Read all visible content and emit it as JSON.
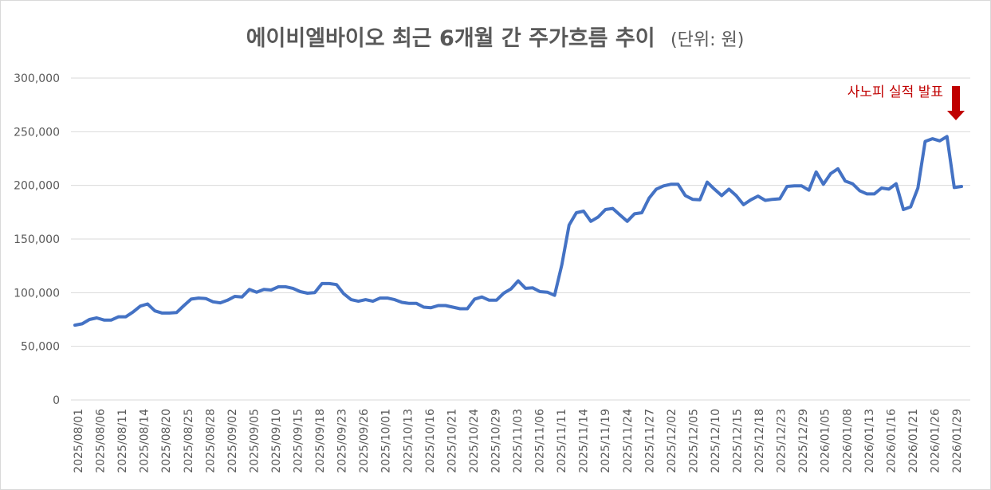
{
  "chart_data": {
    "type": "line",
    "title": "에이비엘바이오 최근 6개월 간 주가흐름 추이",
    "subtitle": "(단위: 원)",
    "xlabel": "",
    "ylabel": "",
    "ylim": [
      0,
      300000
    ],
    "yticks": [
      "0",
      "50,000",
      "100,000",
      "150,000",
      "200,000",
      "250,000",
      "300,000"
    ],
    "grid": true,
    "legend": "none",
    "x_tick_labels": [
      "2025/08/01",
      "2025/08/06",
      "2025/08/11",
      "2025/08/14",
      "2025/08/20",
      "2025/08/25",
      "2025/08/28",
      "2025/09/02",
      "2025/09/05",
      "2025/09/10",
      "2025/09/15",
      "2025/09/18",
      "2025/09/23",
      "2025/09/26",
      "2025/10/01",
      "2025/10/13",
      "2025/10/16",
      "2025/10/21",
      "2025/10/24",
      "2025/10/29",
      "2025/11/03",
      "2025/11/06",
      "2025/11/11",
      "2025/11/14",
      "2025/11/19",
      "2025/11/24",
      "2025/11/27",
      "2025/12/02",
      "2025/12/05",
      "2025/12/10",
      "2025/12/15",
      "2025/12/18",
      "2025/12/23",
      "2025/12/29",
      "2026/01/05",
      "2026/01/08",
      "2026/01/13",
      "2026/01/16",
      "2026/01/21",
      "2026/01/26",
      "2026/01/29"
    ],
    "series": [
      {
        "color": "#4472c4",
        "values": [
          69700,
          71000,
          75000,
          76500,
          74500,
          74500,
          77500,
          77500,
          82000,
          87500,
          89500,
          83000,
          81000,
          81000,
          81500,
          88000,
          94000,
          95000,
          94500,
          91500,
          90500,
          93000,
          96500,
          96000,
          103000,
          100500,
          103000,
          102500,
          105500,
          105500,
          104000,
          101000,
          99500,
          100000,
          108500,
          108500,
          107500,
          99000,
          93500,
          92000,
          93500,
          92000,
          95000,
          95000,
          93500,
          91000,
          90000,
          90000,
          86500,
          86000,
          88000,
          88000,
          86500,
          85000,
          85000,
          94000,
          96000,
          93000,
          93000,
          99500,
          103500,
          111000,
          104000,
          104500,
          101000,
          100500,
          97500,
          126000,
          163000,
          174500,
          176000,
          166500,
          170500,
          177500,
          178500,
          172500,
          166500,
          173500,
          174500,
          188000,
          196500,
          199500,
          201000,
          201000,
          190500,
          187000,
          186500,
          203000,
          196500,
          190500,
          196500,
          190500,
          182000,
          186500,
          190000,
          186000,
          187000,
          187500,
          199000,
          199500,
          199500,
          195500,
          212500,
          201000,
          211000,
          215500,
          204000,
          201500,
          195000,
          192000,
          192000,
          197500,
          196500,
          201500,
          177500,
          180000,
          197500,
          241000,
          243500,
          241500,
          245500,
          198000,
          199000
        ]
      }
    ],
    "annotations": [
      {
        "text": "사노피 실적 발표",
        "arrow": "down",
        "color": "#c00000"
      }
    ]
  }
}
